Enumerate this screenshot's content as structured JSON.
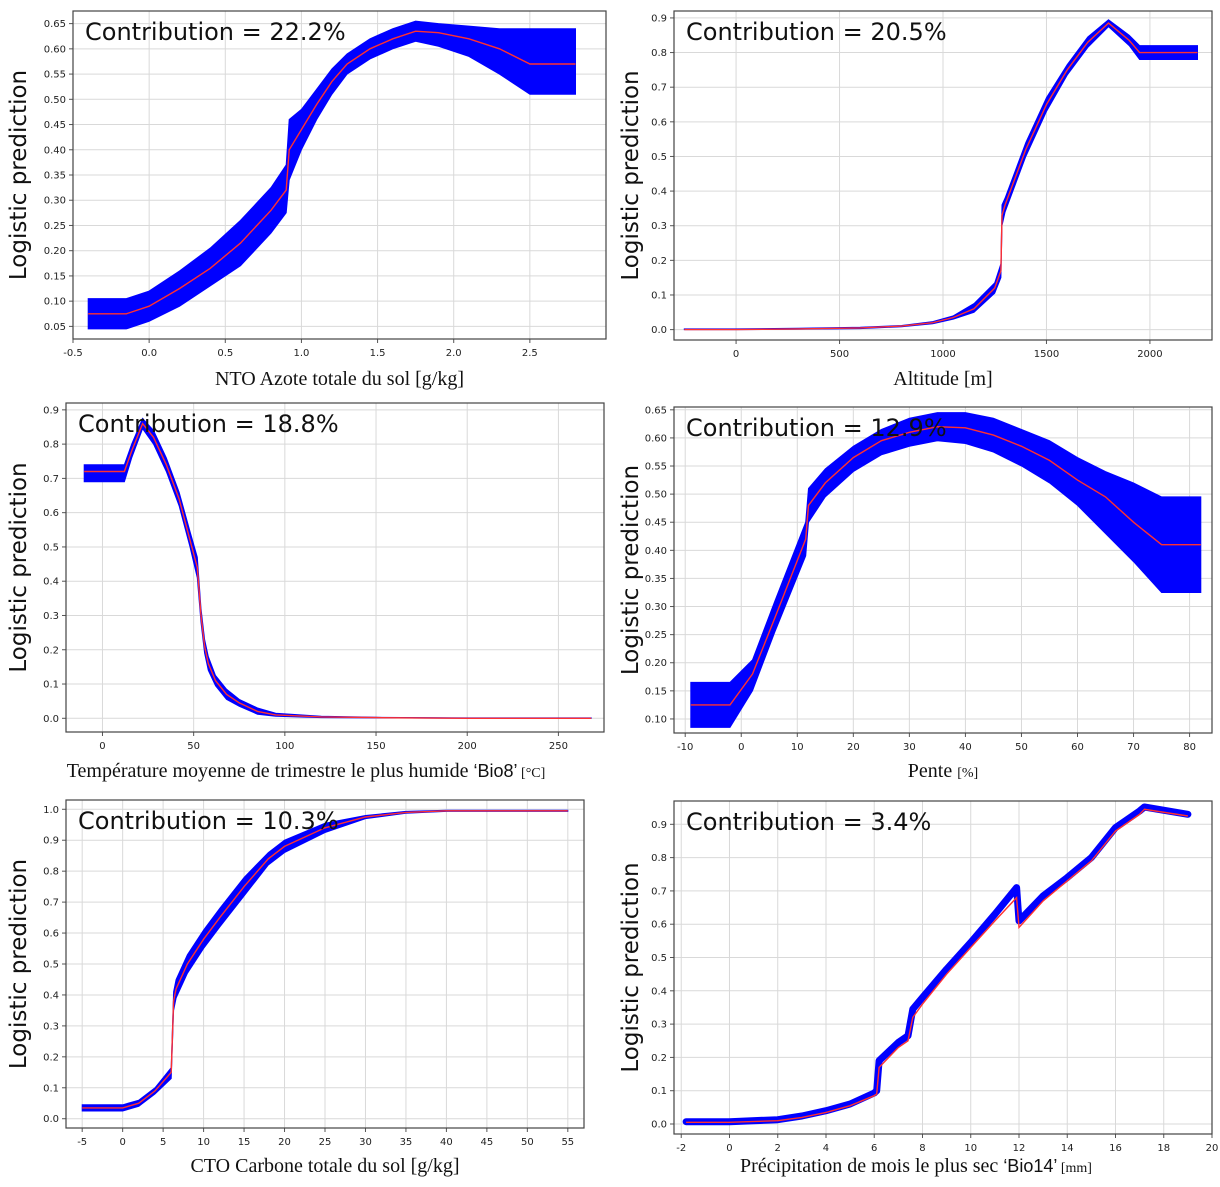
{
  "chart_data": [
    {
      "type": "line",
      "annotation": "Contribution = 22.2%",
      "ylabel": "Logistic prediction",
      "xlabel": "NTO Azote totale du sol [g/kg]",
      "xlim": [
        -0.5,
        3.0
      ],
      "ylim": [
        0.025,
        0.675
      ],
      "xticks": [
        -0.5,
        0.0,
        0.5,
        1.0,
        1.5,
        2.0,
        2.5
      ],
      "yticks": [
        0.05,
        0.1,
        0.15,
        0.2,
        0.25,
        0.3,
        0.35,
        0.4,
        0.45,
        0.5,
        0.55,
        0.6,
        0.65
      ],
      "series": [
        {
          "role": "mean",
          "color": "#ff3030",
          "x": [
            -0.4,
            -0.15,
            0.0,
            0.2,
            0.4,
            0.6,
            0.8,
            0.9,
            0.92,
            1.0,
            1.1,
            1.2,
            1.3,
            1.45,
            1.6,
            1.75,
            1.9,
            2.1,
            2.3,
            2.5,
            2.8
          ],
          "y": [
            0.075,
            0.075,
            0.09,
            0.125,
            0.165,
            0.215,
            0.28,
            0.32,
            0.4,
            0.44,
            0.49,
            0.535,
            0.57,
            0.6,
            0.62,
            0.635,
            0.632,
            0.62,
            0.6,
            0.57,
            0.57
          ]
        },
        {
          "role": "band",
          "color": "#0000ff",
          "x": [
            -0.4,
            -0.15,
            0.0,
            0.2,
            0.4,
            0.6,
            0.8,
            0.9,
            0.92,
            1.0,
            1.1,
            1.2,
            1.3,
            1.45,
            1.6,
            1.75,
            1.9,
            2.1,
            2.3,
            2.5,
            2.8
          ],
          "upper": [
            0.105,
            0.105,
            0.12,
            0.16,
            0.205,
            0.26,
            0.325,
            0.37,
            0.46,
            0.48,
            0.52,
            0.56,
            0.59,
            0.62,
            0.64,
            0.655,
            0.65,
            0.645,
            0.64,
            0.64,
            0.64
          ],
          "lower": [
            0.045,
            0.045,
            0.06,
            0.09,
            0.13,
            0.17,
            0.235,
            0.275,
            0.34,
            0.4,
            0.46,
            0.51,
            0.55,
            0.58,
            0.6,
            0.615,
            0.605,
            0.585,
            0.55,
            0.51,
            0.51
          ]
        }
      ]
    },
    {
      "type": "line",
      "annotation": "Contribution = 20.5%",
      "ylabel": "Logistic prediction",
      "xlabel": "Altitude [m]",
      "xlim": [
        -300,
        2300
      ],
      "ylim": [
        -0.03,
        0.92
      ],
      "xticks": [
        0,
        500,
        1000,
        1500,
        2000
      ],
      "yticks": [
        0.0,
        0.1,
        0.2,
        0.3,
        0.4,
        0.5,
        0.6,
        0.7,
        0.8,
        0.9
      ],
      "series": [
        {
          "role": "mean",
          "color": "#ff3030",
          "x": [
            -250,
            0,
            300,
            600,
            800,
            950,
            1050,
            1150,
            1250,
            1280,
            1285,
            1300,
            1400,
            1500,
            1600,
            1700,
            1800,
            1900,
            1950,
            2230
          ],
          "y": [
            0.0,
            0.0,
            0.002,
            0.005,
            0.01,
            0.02,
            0.035,
            0.06,
            0.12,
            0.17,
            0.33,
            0.36,
            0.52,
            0.65,
            0.75,
            0.83,
            0.885,
            0.835,
            0.8,
            0.8
          ]
        },
        {
          "role": "band",
          "color": "#0000ff",
          "x": [
            -250,
            0,
            300,
            600,
            800,
            950,
            1050,
            1150,
            1250,
            1280,
            1285,
            1300,
            1400,
            1500,
            1600,
            1700,
            1800,
            1900,
            1950,
            2230
          ],
          "upper": [
            0.002,
            0.002,
            0.004,
            0.007,
            0.012,
            0.023,
            0.04,
            0.075,
            0.135,
            0.19,
            0.36,
            0.38,
            0.54,
            0.67,
            0.765,
            0.845,
            0.895,
            0.85,
            0.82,
            0.82
          ],
          "lower": [
            0.0,
            0.0,
            0.001,
            0.003,
            0.008,
            0.017,
            0.03,
            0.05,
            0.105,
            0.15,
            0.3,
            0.34,
            0.5,
            0.63,
            0.735,
            0.815,
            0.875,
            0.82,
            0.78,
            0.78
          ]
        }
      ]
    },
    {
      "type": "line",
      "annotation": "Contribution = 18.8%",
      "ylabel": "Logistic prediction",
      "xlabel_main": "Température moyenne de trimestre le plus humide ",
      "xlabel_code": "‘Bio8’",
      "xlabel_unit": " [°C]",
      "xlim": [
        -20,
        275
      ],
      "ylim": [
        -0.04,
        0.92
      ],
      "xticks": [
        0,
        50,
        100,
        150,
        200,
        250
      ],
      "yticks": [
        0.0,
        0.1,
        0.2,
        0.3,
        0.4,
        0.5,
        0.6,
        0.7,
        0.8,
        0.9
      ],
      "series": [
        {
          "role": "mean",
          "color": "#ff3030",
          "x": [
            -10,
            12,
            16,
            22,
            28,
            35,
            42,
            48,
            52,
            54,
            56,
            58,
            62,
            68,
            75,
            85,
            95,
            120,
            150,
            200,
            268
          ],
          "y": [
            0.72,
            0.72,
            0.78,
            0.86,
            0.82,
            0.74,
            0.64,
            0.52,
            0.44,
            0.3,
            0.21,
            0.16,
            0.11,
            0.07,
            0.045,
            0.02,
            0.01,
            0.004,
            0.002,
            0.0,
            0.0
          ]
        },
        {
          "role": "band",
          "color": "#0000ff",
          "x": [
            -10,
            12,
            16,
            22,
            28,
            35,
            42,
            48,
            52,
            54,
            56,
            58,
            62,
            68,
            75,
            85,
            95,
            120,
            150,
            200,
            268
          ],
          "upper": [
            0.74,
            0.74,
            0.8,
            0.875,
            0.84,
            0.76,
            0.66,
            0.545,
            0.47,
            0.32,
            0.23,
            0.18,
            0.125,
            0.085,
            0.055,
            0.03,
            0.015,
            0.006,
            0.003,
            0.001,
            0.001
          ],
          "lower": [
            0.69,
            0.69,
            0.76,
            0.845,
            0.8,
            0.72,
            0.62,
            0.5,
            0.41,
            0.28,
            0.19,
            0.14,
            0.095,
            0.055,
            0.035,
            0.012,
            0.006,
            0.002,
            0.001,
            0.0,
            0.0
          ]
        }
      ]
    },
    {
      "type": "line",
      "annotation": "Contribution = 12.9%",
      "ylabel": "Logistic prediction",
      "xlabel_main": "Pente ",
      "xlabel_unit": "[%]",
      "xlim": [
        -12,
        84
      ],
      "ylim": [
        0.075,
        0.655
      ],
      "xticks": [
        -10,
        0,
        10,
        20,
        30,
        40,
        50,
        60,
        70,
        80
      ],
      "yticks": [
        0.1,
        0.15,
        0.2,
        0.25,
        0.3,
        0.35,
        0.4,
        0.45,
        0.5,
        0.55,
        0.6,
        0.65
      ],
      "series": [
        {
          "role": "mean",
          "color": "#ff3030",
          "x": [
            -9,
            -2,
            2,
            6,
            11.5,
            12,
            15,
            20,
            25,
            30,
            35,
            40,
            45,
            50,
            55,
            60,
            65,
            70,
            75,
            82
          ],
          "y": [
            0.125,
            0.125,
            0.18,
            0.28,
            0.42,
            0.48,
            0.52,
            0.565,
            0.595,
            0.61,
            0.62,
            0.618,
            0.605,
            0.585,
            0.56,
            0.525,
            0.495,
            0.45,
            0.41,
            0.41
          ]
        },
        {
          "role": "band",
          "color": "#0000ff",
          "x": [
            -9,
            -2,
            2,
            6,
            11.5,
            12,
            15,
            20,
            25,
            30,
            35,
            40,
            45,
            50,
            55,
            60,
            65,
            70,
            75,
            82
          ],
          "upper": [
            0.165,
            0.165,
            0.205,
            0.31,
            0.45,
            0.51,
            0.545,
            0.585,
            0.615,
            0.635,
            0.645,
            0.645,
            0.635,
            0.615,
            0.595,
            0.565,
            0.54,
            0.52,
            0.495,
            0.495
          ],
          "lower": [
            0.085,
            0.085,
            0.15,
            0.255,
            0.39,
            0.45,
            0.495,
            0.54,
            0.57,
            0.585,
            0.595,
            0.59,
            0.575,
            0.55,
            0.52,
            0.48,
            0.43,
            0.38,
            0.325,
            0.325
          ]
        }
      ]
    },
    {
      "type": "line",
      "annotation": "Contribution = 10.3%",
      "ylabel": "Logistic prediction",
      "xlabel": "CTO Carbone totale du sol [g/kg]",
      "xlim": [
        -7,
        57
      ],
      "ylim": [
        -0.03,
        1.03
      ],
      "xticks": [
        -5,
        0,
        5,
        10,
        15,
        20,
        25,
        30,
        35,
        40,
        45,
        50,
        55
      ],
      "yticks": [
        0.0,
        0.1,
        0.2,
        0.3,
        0.4,
        0.5,
        0.6,
        0.7,
        0.8,
        0.9,
        1.0
      ],
      "series": [
        {
          "role": "mean",
          "color": "#ff3030",
          "x": [
            -5,
            0,
            2,
            4,
            6,
            6.3,
            6.6,
            8,
            10,
            12,
            15,
            18,
            20,
            25,
            30,
            35,
            40,
            45,
            55
          ],
          "y": [
            0.035,
            0.035,
            0.05,
            0.09,
            0.15,
            0.38,
            0.42,
            0.5,
            0.58,
            0.65,
            0.75,
            0.84,
            0.88,
            0.94,
            0.975,
            0.99,
            0.995,
            0.995,
            0.995
          ]
        },
        {
          "role": "band",
          "color": "#0000ff",
          "x": [
            -5,
            0,
            2,
            4,
            6,
            6.3,
            6.6,
            8,
            10,
            12,
            15,
            18,
            20,
            25,
            30,
            35,
            40,
            45,
            55
          ],
          "upper": [
            0.045,
            0.045,
            0.06,
            0.1,
            0.165,
            0.41,
            0.45,
            0.53,
            0.61,
            0.68,
            0.78,
            0.86,
            0.9,
            0.955,
            0.98,
            0.993,
            0.997,
            0.997,
            0.997
          ],
          "lower": [
            0.025,
            0.025,
            0.04,
            0.08,
            0.13,
            0.35,
            0.39,
            0.47,
            0.55,
            0.62,
            0.72,
            0.82,
            0.86,
            0.925,
            0.97,
            0.987,
            0.993,
            0.993,
            0.993
          ]
        }
      ]
    },
    {
      "type": "line",
      "annotation": "Contribution = 3.4%",
      "ylabel": "Logistic prediction",
      "xlabel_main": "Précipitation de mois le plus sec  ",
      "xlabel_code": "‘Bio14’",
      "xlabel_unit": " [mm]",
      "xlim": [
        -2.3,
        20
      ],
      "ylim": [
        -0.03,
        0.97
      ],
      "xticks": [
        -2,
        0,
        2,
        4,
        6,
        8,
        10,
        12,
        14,
        16,
        18,
        20
      ],
      "yticks": [
        0.0,
        0.1,
        0.2,
        0.3,
        0.4,
        0.5,
        0.6,
        0.7,
        0.8,
        0.9
      ],
      "series": [
        {
          "role": "mean",
          "color": "#ff3030",
          "x": [
            -1.8,
            0,
            2,
            3,
            4,
            5,
            6,
            6.1,
            6.2,
            7,
            7.4,
            7.6,
            8,
            9,
            10,
            11,
            11.9,
            12,
            13,
            14,
            15,
            16,
            17,
            17.2,
            19
          ],
          "y": [
            0.005,
            0.005,
            0.01,
            0.02,
            0.035,
            0.055,
            0.085,
            0.09,
            0.17,
            0.23,
            0.25,
            0.32,
            0.36,
            0.45,
            0.53,
            0.61,
            0.68,
            0.59,
            0.67,
            0.73,
            0.79,
            0.88,
            0.93,
            0.945,
            0.925
          ]
        },
        {
          "role": "band",
          "color": "#0000ff",
          "x": [
            -1.8,
            0,
            2,
            3,
            4,
            5,
            6,
            6.1,
            6.2,
            7,
            7.4,
            7.6,
            8,
            9,
            10,
            11,
            11.9,
            12,
            13,
            14,
            15,
            16,
            17,
            17.2,
            19
          ],
          "upper": [
            0.007,
            0.007,
            0.013,
            0.024,
            0.04,
            0.06,
            0.093,
            0.1,
            0.19,
            0.245,
            0.265,
            0.345,
            0.38,
            0.465,
            0.545,
            0.63,
            0.71,
            0.61,
            0.685,
            0.74,
            0.8,
            0.89,
            0.94,
            0.952,
            0.93
          ]
        }
      ]
    }
  ]
}
